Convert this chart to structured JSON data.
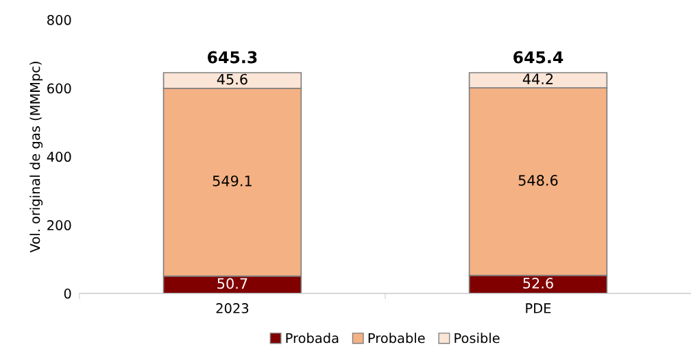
{
  "chart_data": {
    "type": "bar",
    "stacked": true,
    "ylabel": "Vol. original de gas (MMMpc)",
    "categories": [
      "2023",
      "PDE"
    ],
    "series": [
      {
        "name": "Probada",
        "color": "#800000",
        "values": [
          50.7,
          52.6
        ]
      },
      {
        "name": "Probable",
        "color": "#f4b183",
        "values": [
          549.1,
          548.6
        ]
      },
      {
        "name": "Posible",
        "color": "#fbe5d6",
        "values": [
          45.6,
          44.2
        ]
      }
    ],
    "totals": [
      "645.3",
      "645.4"
    ],
    "data_labels": true,
    "ylim": [
      0,
      800
    ],
    "yticks": [
      0,
      200,
      400,
      600,
      800
    ],
    "grid": false,
    "legend": "bottom"
  }
}
